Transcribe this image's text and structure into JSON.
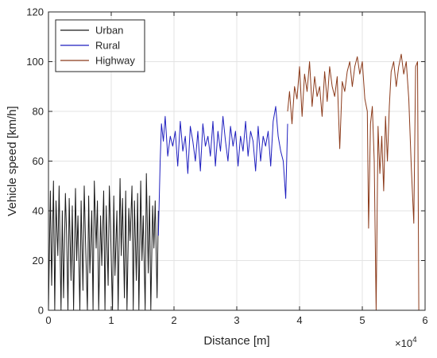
{
  "chart_data": {
    "type": "line",
    "xlabel": "Distance [m]",
    "ylabel": "Vehicle speed [km/h]",
    "x_exponent_label": "×10",
    "x_exponent_power": "4",
    "xlim": [
      0,
      60000
    ],
    "ylim": [
      0,
      120
    ],
    "x_ticks": [
      0,
      10000,
      20000,
      30000,
      40000,
      50000,
      60000
    ],
    "x_tick_labels": [
      "0",
      "1",
      "2",
      "3",
      "4",
      "5",
      "6"
    ],
    "y_ticks": [
      0,
      20,
      40,
      60,
      80,
      100,
      120
    ],
    "y_tick_labels": [
      "0",
      "20",
      "40",
      "60",
      "80",
      "100",
      "120"
    ],
    "grid": true,
    "legend_position": "top-left",
    "series": [
      {
        "name": "Urban",
        "color": "#1a1a1a",
        "x": [
          0,
          300,
          500,
          800,
          1000,
          1200,
          1500,
          1700,
          2000,
          2200,
          2400,
          2700,
          2900,
          3100,
          3300,
          3600,
          3800,
          4000,
          4300,
          4500,
          4700,
          5000,
          5200,
          5500,
          5700,
          5900,
          6200,
          6400,
          6600,
          6900,
          7100,
          7300,
          7600,
          7800,
          8000,
          8300,
          8500,
          8800,
          9000,
          9200,
          9500,
          9700,
          9900,
          10200,
          10400,
          10600,
          10900,
          11100,
          11400,
          11600,
          11800,
          12100,
          12300,
          12500,
          12800,
          13000,
          13300,
          13500,
          13700,
          14000,
          14200,
          14400,
          14700,
          14900,
          15100,
          15400,
          15600,
          15900,
          16100,
          16300,
          16600,
          16800,
          17000,
          17300,
          17500
        ],
        "y": [
          0,
          48,
          10,
          52,
          0,
          44,
          22,
          50,
          0,
          40,
          5,
          47,
          30,
          0,
          45,
          12,
          42,
          0,
          49,
          20,
          38,
          0,
          44,
          8,
          50,
          28,
          0,
          46,
          15,
          40,
          0,
          52,
          25,
          44,
          0,
          38,
          18,
          48,
          0,
          42,
          10,
          50,
          32,
          0,
          46,
          14,
          40,
          0,
          53,
          22,
          45,
          5,
          48,
          0,
          41,
          28,
          50,
          0,
          44,
          12,
          47,
          0,
          52,
          20,
          38,
          0,
          55,
          15,
          46,
          0,
          42,
          25,
          44,
          5,
          40
        ]
      },
      {
        "name": "Rural",
        "color": "#1f1fbf",
        "x": [
          17500,
          17800,
          18000,
          18300,
          18600,
          19000,
          19400,
          19800,
          20200,
          20600,
          21000,
          21400,
          21800,
          22200,
          22600,
          23000,
          23400,
          23800,
          24200,
          24600,
          25000,
          25400,
          25800,
          26200,
          26600,
          27000,
          27400,
          27800,
          28200,
          28600,
          29000,
          29400,
          29800,
          30200,
          30600,
          31000,
          31400,
          31800,
          32200,
          32600,
          33000,
          33400,
          33800,
          34200,
          34600,
          35000,
          35400,
          35800,
          36200,
          36600,
          37000,
          37400,
          37800,
          38100
        ],
        "y": [
          30,
          60,
          75,
          68,
          78,
          62,
          70,
          66,
          72,
          58,
          76,
          64,
          70,
          55,
          74,
          68,
          60,
          72,
          56,
          75,
          66,
          70,
          62,
          76,
          58,
          72,
          64,
          78,
          68,
          60,
          74,
          66,
          72,
          58,
          70,
          64,
          76,
          62,
          72,
          68,
          56,
          74,
          60,
          70,
          66,
          72,
          58,
          76,
          82,
          70,
          64,
          60,
          45,
          75
        ]
      },
      {
        "name": "Highway",
        "color": "#8b3a1a",
        "x": [
          38100,
          38400,
          38800,
          39200,
          39600,
          40000,
          40400,
          40800,
          41200,
          41600,
          42000,
          42400,
          42800,
          43200,
          43600,
          44000,
          44400,
          44800,
          45200,
          45600,
          46000,
          46400,
          46800,
          47200,
          47600,
          48000,
          48400,
          48800,
          49200,
          49600,
          50000,
          50400,
          50800,
          51000,
          51300,
          51600,
          51900,
          52200,
          52500,
          52800,
          53100,
          53400,
          53700,
          54000,
          54300,
          54600,
          55000,
          55400,
          55800,
          56200,
          56600,
          57000,
          57400,
          57800,
          58200,
          58500,
          58800,
          59000
        ],
        "y": [
          80,
          88,
          75,
          90,
          85,
          98,
          78,
          95,
          88,
          100,
          82,
          94,
          86,
          90,
          78,
          96,
          84,
          98,
          90,
          86,
          94,
          65,
          92,
          88,
          96,
          100,
          90,
          98,
          102,
          95,
          100,
          85,
          80,
          33,
          75,
          82,
          60,
          0,
          74,
          55,
          70,
          48,
          78,
          60,
          82,
          96,
          100,
          90,
          98,
          103,
          95,
          100,
          85,
          58,
          35,
          98,
          100,
          0
        ]
      }
    ]
  }
}
